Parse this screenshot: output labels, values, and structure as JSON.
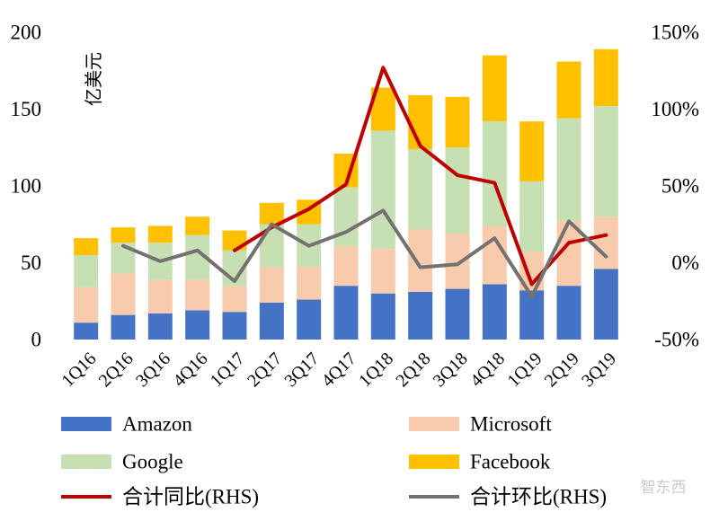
{
  "chart_data": {
    "type": "bar",
    "stacked": true,
    "categories": [
      "1Q16",
      "2Q16",
      "3Q16",
      "4Q16",
      "1Q17",
      "2Q17",
      "3Q17",
      "4Q17",
      "1Q18",
      "2Q18",
      "3Q18",
      "4Q18",
      "1Q19",
      "2Q19",
      "3Q19"
    ],
    "series": [
      {
        "name": "Amazon",
        "color": "#4472C4",
        "axis": "left",
        "values": [
          11,
          16,
          17,
          19,
          18,
          24,
          26,
          35,
          30,
          31,
          33,
          36,
          32,
          35,
          46
        ]
      },
      {
        "name": "Microsoft",
        "color": "#F8CBAD",
        "axis": "left",
        "values": [
          23,
          27,
          22,
          20,
          17,
          23,
          21,
          26,
          29,
          41,
          36,
          38,
          25,
          42,
          34
        ]
      },
      {
        "name": "Google",
        "color": "#C6E0B4",
        "axis": "left",
        "values": [
          21,
          20,
          24,
          29,
          23,
          28,
          28,
          38,
          77,
          52,
          56,
          68,
          46,
          67,
          72
        ]
      },
      {
        "name": "Facebook",
        "color": "#FFC000",
        "axis": "left",
        "values": [
          11,
          10,
          11,
          12,
          13,
          14,
          16,
          22,
          28,
          35,
          33,
          43,
          39,
          37,
          37
        ]
      }
    ],
    "lines": [
      {
        "name": "合计同比(RHS)",
        "color": "#C00000",
        "axis": "right",
        "start_index": 4,
        "values": [
          8,
          23,
          35,
          51,
          127,
          76,
          57,
          52,
          -14,
          13,
          18
        ]
      },
      {
        "name": "合计环比(RHS)",
        "color": "#767171",
        "axis": "right",
        "start_index": 1,
        "values": [
          11,
          1,
          8,
          -12,
          25,
          11,
          20,
          34,
          -3,
          -1,
          16,
          -22,
          27,
          4
        ]
      }
    ],
    "ylim": [
      0,
      200
    ],
    "yticks": [
      "0",
      "50",
      "100",
      "150",
      "200"
    ],
    "y2lim": [
      -50,
      150
    ],
    "y2ticks": [
      "-50%",
      "0%",
      "50%",
      "100%",
      "150%"
    ],
    "ylabel": "亿美元",
    "watermark": "智东西",
    "legend": [
      {
        "label": "Amazon",
        "kind": "box",
        "color": "#4472C4"
      },
      {
        "label": "Microsoft",
        "kind": "box",
        "color": "#F8CBAD"
      },
      {
        "label": "Google",
        "kind": "box",
        "color": "#C6E0B4"
      },
      {
        "label": "Facebook",
        "kind": "box",
        "color": "#FFC000"
      },
      {
        "label": "合计同比(RHS)",
        "kind": "line",
        "color": "#C00000"
      },
      {
        "label": "合计环比(RHS)",
        "kind": "line",
        "color": "#767171"
      }
    ]
  }
}
